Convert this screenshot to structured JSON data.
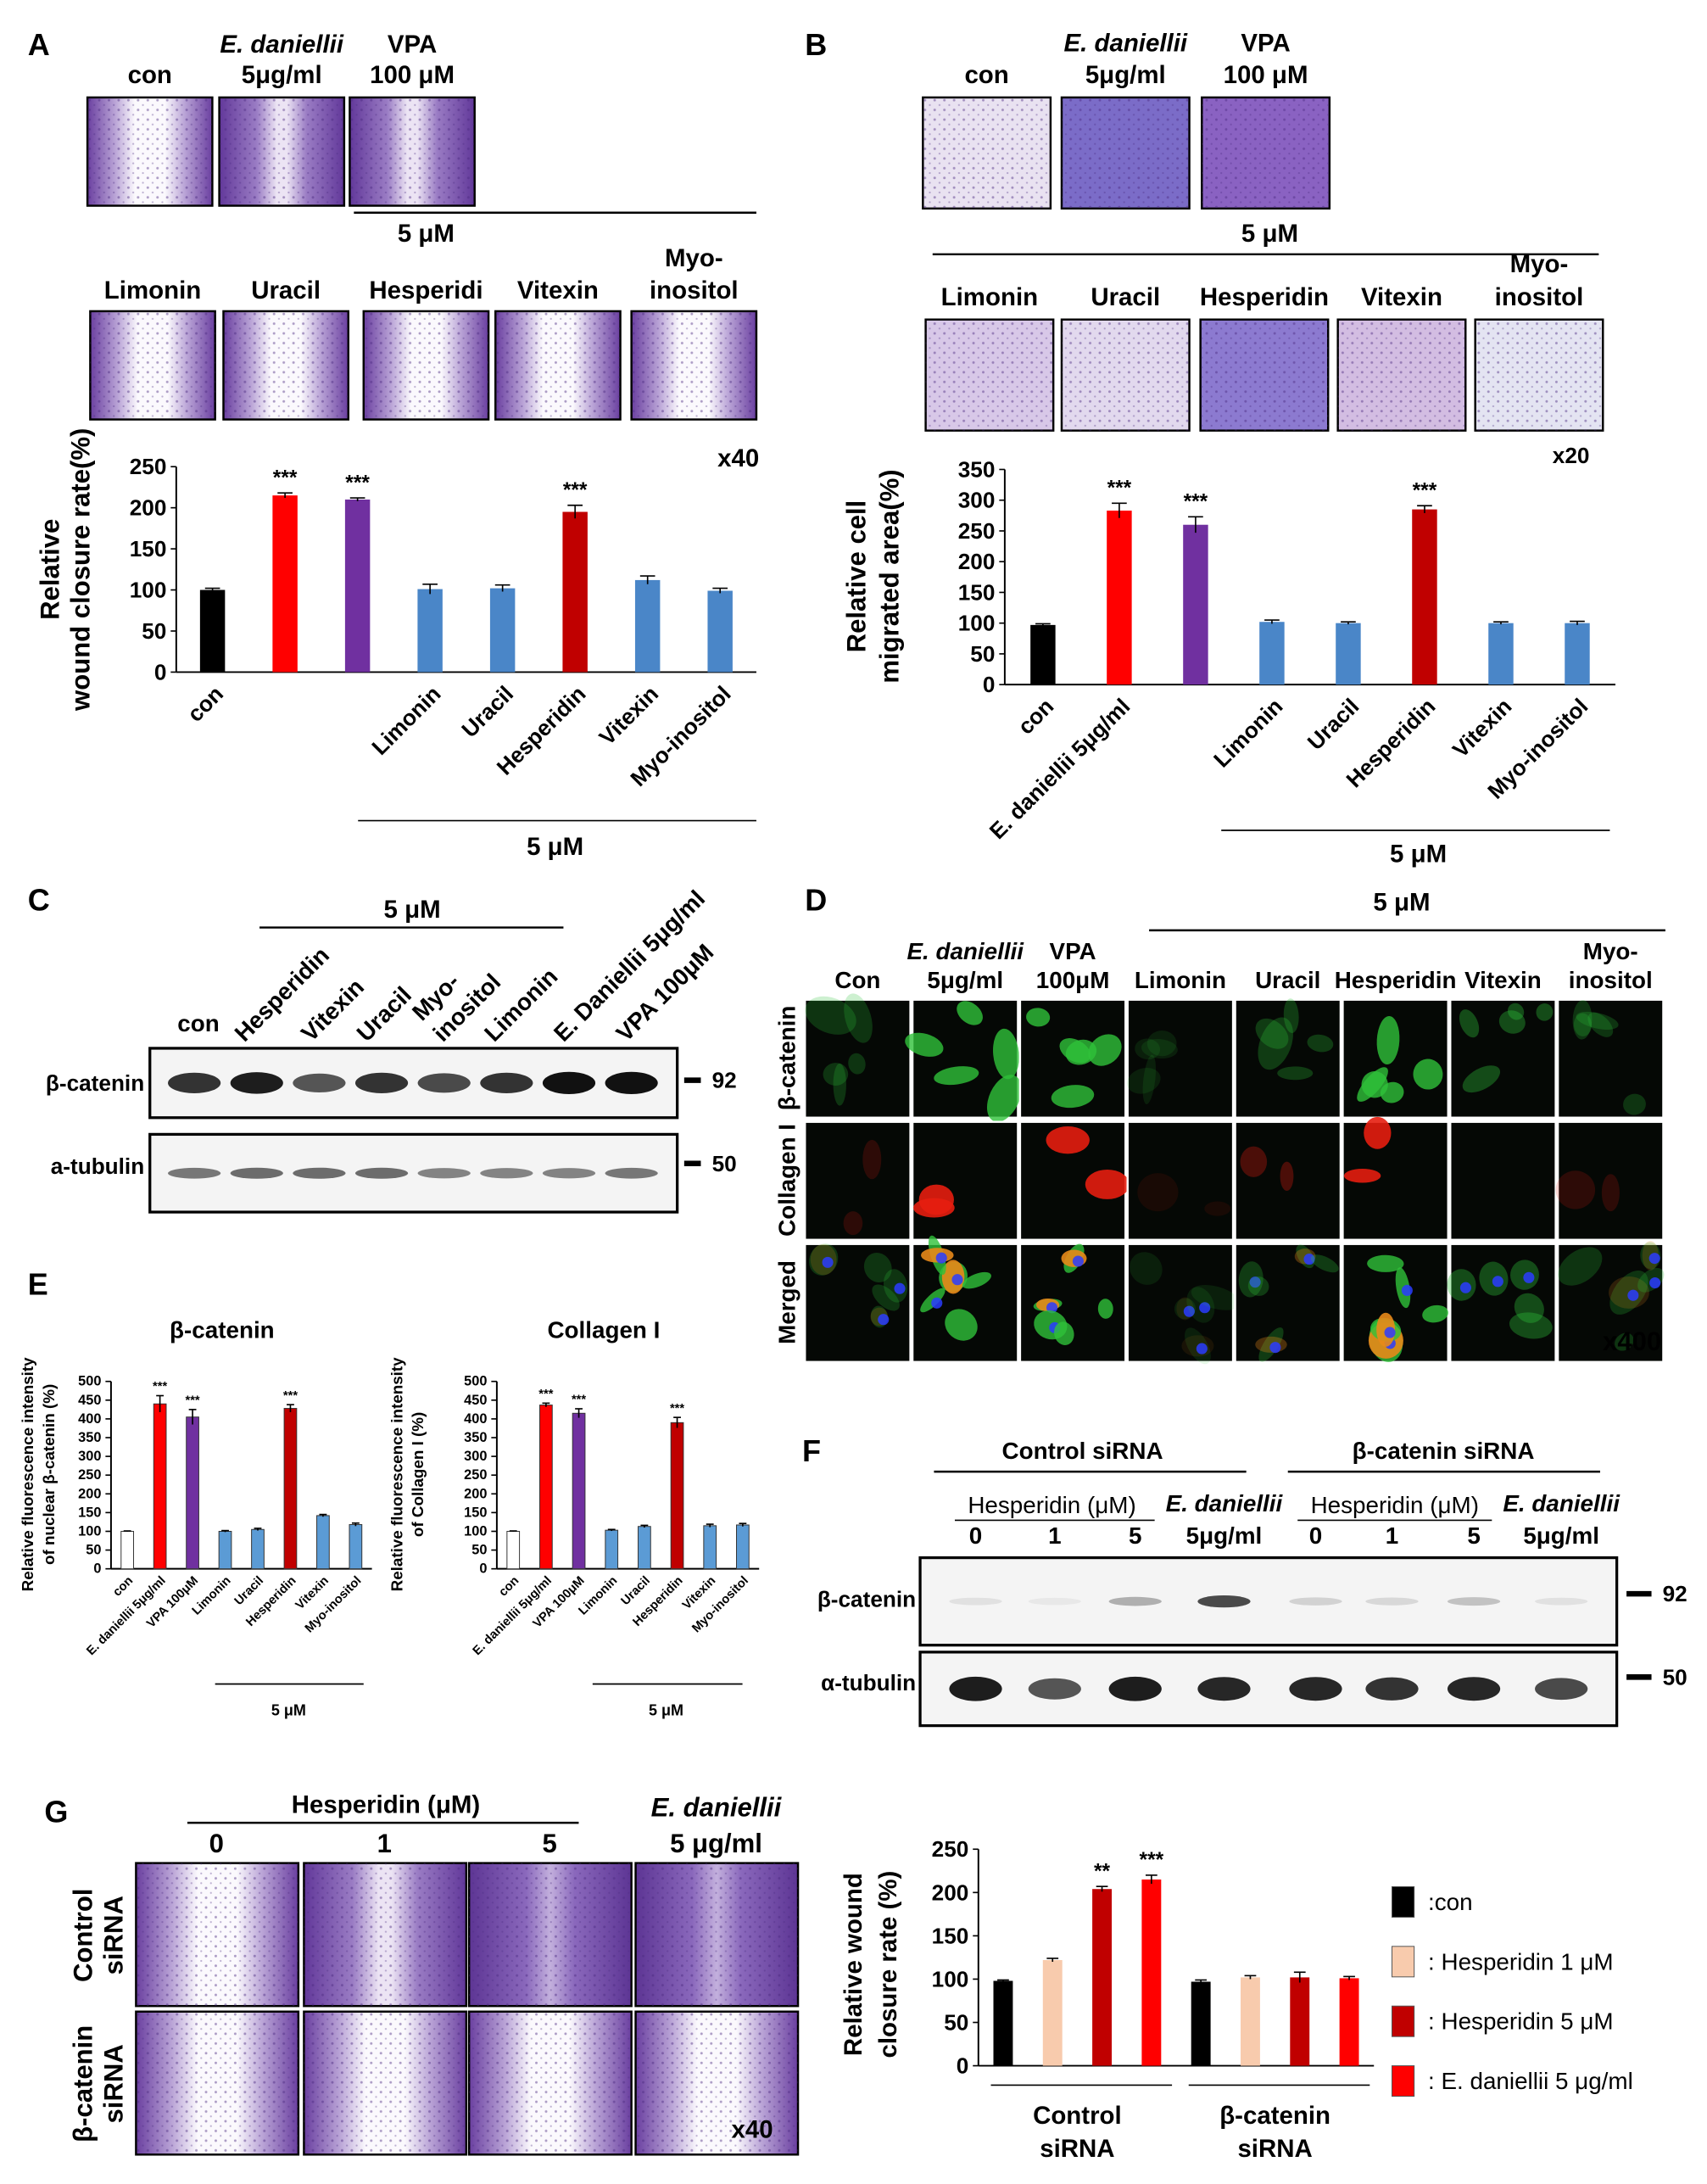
{
  "panel_a": {
    "letter": "A",
    "top_labels": [
      [
        "con"
      ],
      [
        "E. daniellii",
        "5μg/ml"
      ],
      [
        "VPA",
        "100 μM"
      ]
    ],
    "group_label": "5 μM",
    "bottom_labels": [
      [
        "Limonin"
      ],
      [
        "Uracil"
      ],
      [
        "Hesperidi"
      ],
      [
        "Vitexin"
      ],
      [
        "Myo-",
        "inositol"
      ]
    ],
    "magnification": "x40"
  },
  "panel_b": {
    "letter": "B",
    "top_labels": [
      [
        "con"
      ],
      [
        "E. daniellii",
        "5μg/ml"
      ],
      [
        "VPA",
        "100 μM"
      ]
    ],
    "group_label": "5 μM",
    "bottom_labels": [
      [
        "Limonin"
      ],
      [
        "Uracil"
      ],
      [
        "Hesperidin"
      ],
      [
        "Vitexin"
      ],
      [
        "Myo-",
        "inositol"
      ]
    ],
    "magnification": "x20"
  },
  "panel_c": {
    "letter": "C",
    "group_label": "5 μM",
    "lanes": [
      [
        "con"
      ],
      [
        "Hesperidin"
      ],
      [
        "Vitexin"
      ],
      [
        "Uracil"
      ],
      [
        "Myo-",
        "inositol"
      ],
      [
        "Limonin"
      ],
      [
        "E. Daniellii 5μg/ml"
      ],
      [
        "VPA 100μM"
      ]
    ],
    "blots": [
      {
        "label": "β-catenin",
        "size": "92"
      },
      {
        "label": "a-tubulin",
        "size": "50"
      }
    ]
  },
  "panel_d": {
    "letter": "D",
    "group_label": "5 μM",
    "columns": [
      [
        "Con"
      ],
      [
        "E. daniellii",
        "5μg/ml"
      ],
      [
        "VPA",
        "100μM"
      ],
      [
        "Limonin"
      ],
      [
        "Uracil"
      ],
      [
        "Hesperidin"
      ],
      [
        "Vitexin"
      ],
      [
        "Myo-",
        "inositol"
      ]
    ],
    "rows": [
      "β-catenin",
      "Collagen I",
      "Merged"
    ],
    "magnification": "x400"
  },
  "panel_e": {
    "letter": "E"
  },
  "panel_f": {
    "letter": "F",
    "groups": [
      "Control siRNA",
      "β-catenin siRNA"
    ],
    "treatment_labels": [
      "Hesperidin (μM)",
      "Hesperidin (μM)"
    ],
    "lanes": [
      [
        "0"
      ],
      [
        "1"
      ],
      [
        "5"
      ],
      [
        "E. daniellii",
        "5μg/ml"
      ],
      [
        "0"
      ],
      [
        "1"
      ],
      [
        "5"
      ],
      [
        "E. daniellii",
        "5μg/ml"
      ]
    ],
    "blots": [
      {
        "label": "β-catenin",
        "size": "92"
      },
      {
        "label": "α-tubulin",
        "size": "50"
      }
    ]
  },
  "panel_g": {
    "letter": "G",
    "treatment_label": "Hesperidin (μM)",
    "columns": [
      [
        "0"
      ],
      [
        "1"
      ],
      [
        "5"
      ],
      [
        "E. daniellii",
        "5 μg/ml"
      ]
    ],
    "rows": [
      [
        "Control",
        "siRNA"
      ],
      [
        "β-catenin",
        "siRNA"
      ]
    ],
    "magnification": "x40"
  },
  "chart_data": [
    {
      "type": "bar",
      "ylabel": [
        "Relative",
        "wound closure rate(%)"
      ],
      "categories": [
        "con",
        null,
        null,
        "Limonin",
        "Uracil",
        "Hesperidin",
        "Vitexin",
        "Myo-inositol"
      ],
      "values": [
        100,
        215,
        210,
        101,
        102,
        195,
        112,
        99
      ],
      "errors": [
        2,
        3,
        2,
        6,
        4,
        8,
        5,
        3
      ],
      "colors": [
        "#000000",
        "#ff0000",
        "#7030a0",
        "#4a86c8",
        "#4a86c8",
        "#c00000",
        "#4a86c8",
        "#4a86c8"
      ],
      "annotations": [
        null,
        "***",
        "***",
        null,
        null,
        "***",
        null,
        null
      ],
      "ylim": [
        0,
        250
      ],
      "yticks": [
        0,
        50,
        100,
        150,
        200,
        250
      ],
      "group_label": "5 μM"
    },
    {
      "type": "bar",
      "ylabel": [
        "Relative cell",
        "migrated area(%)"
      ],
      "categories": [
        "con",
        "E. daniellii 5μg/ml",
        null,
        "Limonin",
        "Uracil",
        "Hesperidin",
        "Vitexin",
        "Myo-inositol"
      ],
      "values": [
        97,
        283,
        260,
        102,
        100,
        285,
        100,
        100
      ],
      "errors": [
        2,
        12,
        13,
        3,
        2,
        6,
        2,
        3
      ],
      "colors": [
        "#000000",
        "#ff0000",
        "#7030a0",
        "#4a86c8",
        "#4a86c8",
        "#c00000",
        "#4a86c8",
        "#4a86c8"
      ],
      "annotations": [
        null,
        "***",
        "***",
        null,
        null,
        "***",
        null,
        null
      ],
      "ylim": [
        0,
        350
      ],
      "yticks": [
        0,
        50,
        100,
        150,
        200,
        250,
        300,
        350
      ],
      "group_label": "5 μM"
    },
    {
      "type": "bar",
      "title": "β-catenin",
      "ylabel": [
        "Relative fluorescence intensity",
        "of nuclear β-catenin (%)"
      ],
      "categories": [
        "con",
        "E. daniellii 5μg/ml",
        "VPA 100μM",
        "Limonin",
        "Uracil",
        "Hesperidin",
        "Vitexin",
        "Myo-inositol"
      ],
      "values": [
        100,
        440,
        405,
        100,
        105,
        428,
        142,
        118
      ],
      "errors": [
        1,
        22,
        20,
        2,
        3,
        10,
        3,
        4
      ],
      "colors": [
        "#ffffff",
        "#ff0000",
        "#7030a0",
        "#5b9bd5",
        "#5b9bd5",
        "#c00000",
        "#5b9bd5",
        "#5b9bd5"
      ],
      "edgecolor": "#333333",
      "annotations": [
        null,
        "***",
        "***",
        null,
        null,
        "***",
        null,
        null
      ],
      "ylim": [
        0,
        500
      ],
      "yticks": [
        0,
        50,
        100,
        150,
        200,
        250,
        300,
        350,
        400,
        450,
        500
      ],
      "group_label": "5 μM"
    },
    {
      "type": "bar",
      "title": "Collagen I",
      "ylabel": [
        "Relative fluorescence intensity",
        "of Collagen I (%)"
      ],
      "categories": [
        "con",
        "E. daniellii 5μg/ml",
        "VPA 100μM",
        "Limonin",
        "Uracil",
        "Hesperidin",
        "Vitexin",
        "Myo-inositol"
      ],
      "values": [
        100,
        437,
        415,
        103,
        113,
        390,
        115,
        117
      ],
      "errors": [
        1,
        5,
        12,
        2,
        3,
        14,
        4,
        4
      ],
      "colors": [
        "#ffffff",
        "#ff0000",
        "#7030a0",
        "#5b9bd5",
        "#5b9bd5",
        "#c00000",
        "#5b9bd5",
        "#5b9bd5"
      ],
      "edgecolor": "#333333",
      "annotations": [
        null,
        "***",
        "***",
        null,
        null,
        "***",
        null,
        null
      ],
      "ylim": [
        0,
        500
      ],
      "yticks": [
        0,
        50,
        100,
        150,
        200,
        250,
        300,
        350,
        400,
        450,
        500
      ],
      "group_label": "5 μM"
    },
    {
      "type": "bar",
      "ylabel": [
        "Relative wound",
        "closure rate (%)"
      ],
      "categories": [
        [
          "Control",
          "siRNA"
        ],
        [
          "β-catenin",
          "siRNA"
        ]
      ],
      "series": [
        {
          "name": ":con",
          "color": "#000000",
          "values": [
            98,
            97
          ],
          "errors": [
            1,
            2
          ]
        },
        {
          "name": ": Hesperidin 1 μM",
          "color": "#f8cbad",
          "values": [
            122,
            102
          ],
          "errors": [
            2,
            2
          ]
        },
        {
          "name": ": Hesperidin 5 μM",
          "color": "#c00000",
          "values": [
            204,
            102
          ],
          "errors": [
            3,
            6
          ],
          "annotations": [
            "**",
            null
          ]
        },
        {
          "name": ": E. daniellii 5 μg/ml",
          "color": "#ff0000",
          "values": [
            215,
            101
          ],
          "errors": [
            5,
            2
          ],
          "annotations": [
            "***",
            null
          ]
        }
      ],
      "ylim": [
        0,
        250
      ],
      "yticks": [
        0,
        50,
        100,
        150,
        200,
        250
      ],
      "legend": "right"
    }
  ]
}
